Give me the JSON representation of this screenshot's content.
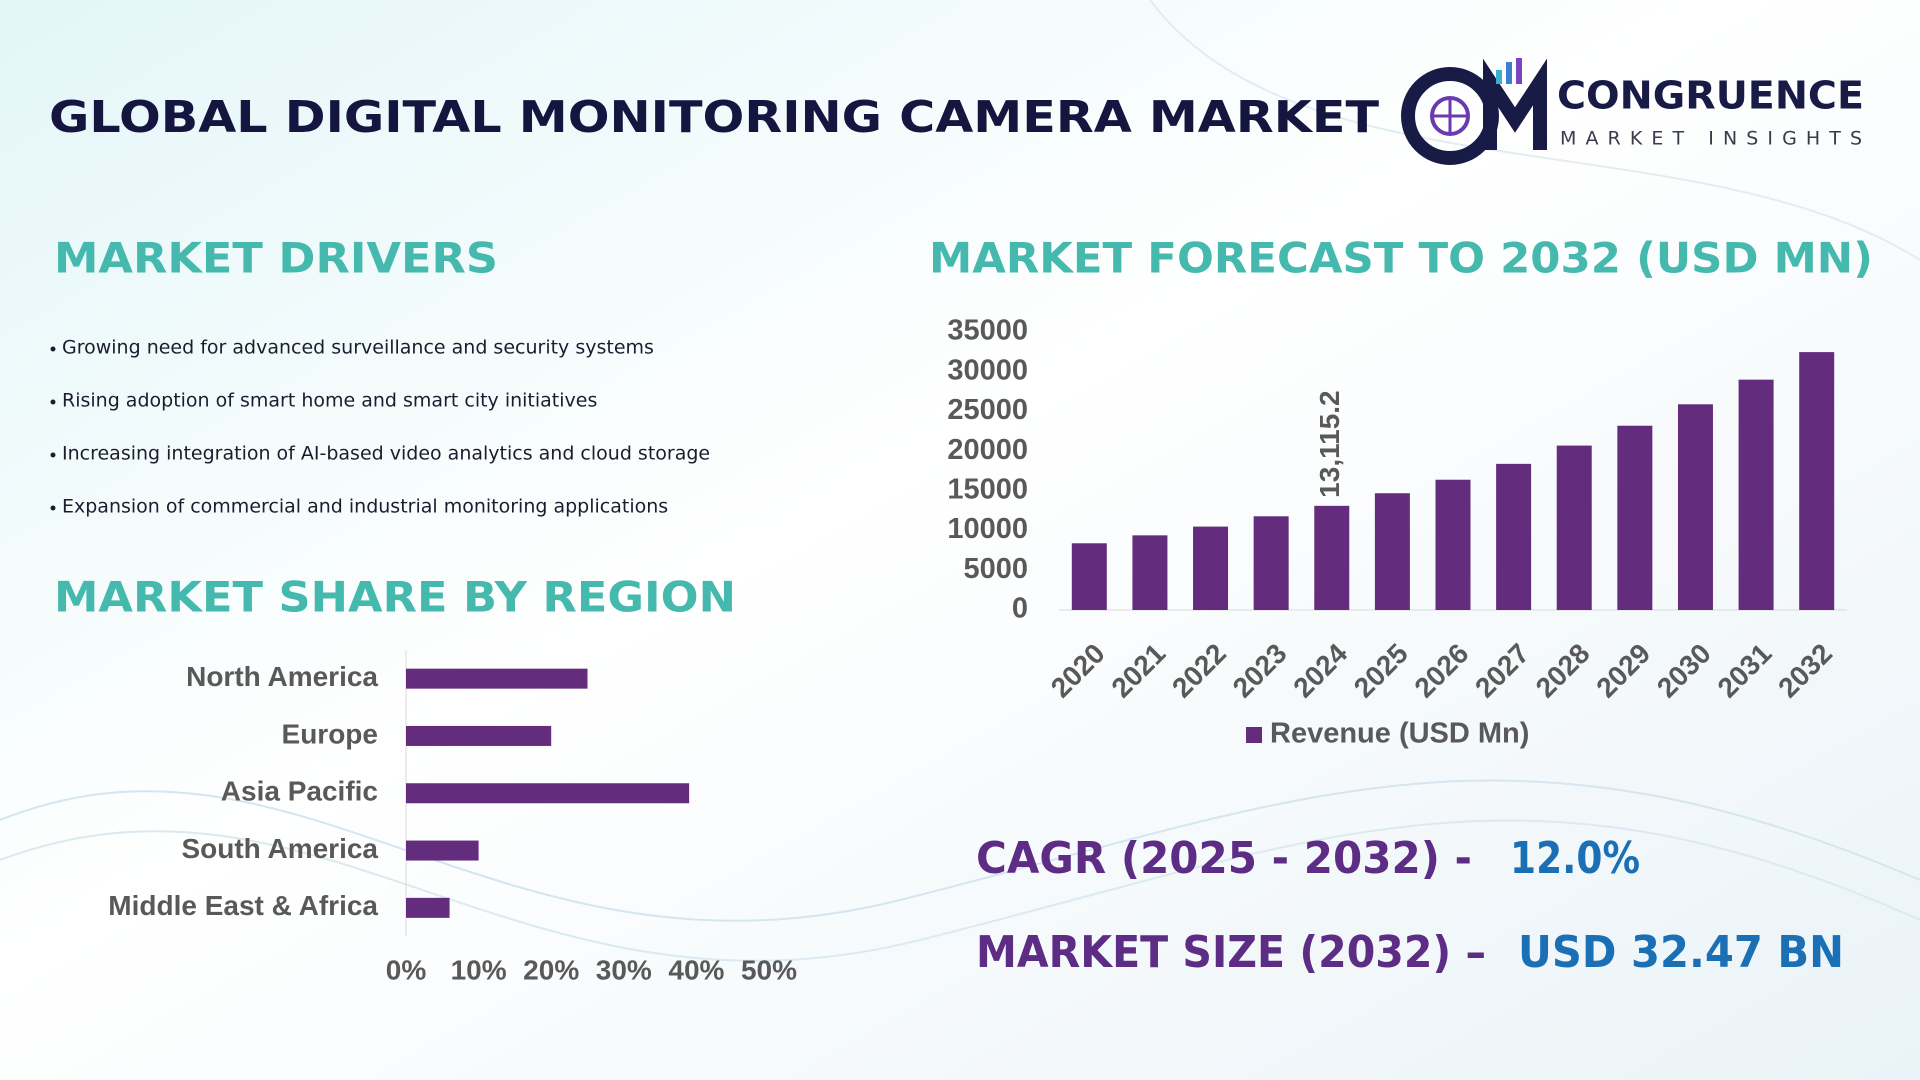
{
  "header": {
    "title": "GLOBAL DIGITAL MONITORING CAMERA MARKET",
    "logo_name": "CONGRUENCE",
    "logo_tagline": "MARKET INSIGHTS"
  },
  "drivers": {
    "heading": "MARKET DRIVERS",
    "items": [
      "Growing need for advanced surveillance and security systems",
      "Rising adoption of smart home and smart city initiatives",
      "Increasing integration of AI-based video analytics and cloud storage",
      "Expansion of commercial and industrial monitoring applications"
    ]
  },
  "region_heading": "MARKET SHARE BY REGION",
  "forecast_heading": "MARKET FORECAST TO 2032 (USD MN)",
  "summary": {
    "cagr_label": "CAGR (2025 - 2032) -",
    "cagr_value": "12.0%",
    "size_label": "MARKET SIZE (2032) –",
    "size_value": "USD 32.47 BN"
  },
  "chart_data": [
    {
      "type": "hbar",
      "categories": [
        "North America",
        "Europe",
        "Asia Pacific",
        "South America",
        "Middle East & Africa"
      ],
      "values": [
        25,
        20,
        39,
        10,
        6
      ],
      "color": "#642c7c",
      "xlim": [
        0,
        50
      ],
      "xticks": [
        {
          "value": 0,
          "label": "0%"
        },
        {
          "value": 10,
          "label": "10%"
        },
        {
          "value": 20,
          "label": "20%"
        },
        {
          "value": 30,
          "label": "30%"
        },
        {
          "value": 40,
          "label": "40%"
        },
        {
          "value": 50,
          "label": "50%"
        }
      ]
    },
    {
      "type": "bar",
      "categories": [
        "2020",
        "2021",
        "2022",
        "2023",
        "2024",
        "2025",
        "2026",
        "2027",
        "2028",
        "2029",
        "2030",
        "2031",
        "2032"
      ],
      "series": [
        {
          "name": "Revenue (USD Mn)",
          "color": "#642c7c",
          "values": [
            8400,
            9400,
            10500,
            11800,
            13115.2,
            14700,
            16400,
            18400,
            20700,
            23200,
            25900,
            29000,
            32470
          ],
          "value_labels": [
            null,
            null,
            null,
            null,
            "13,115.2",
            null,
            null,
            null,
            null,
            null,
            null,
            null,
            null
          ]
        }
      ],
      "ylim": [
        0,
        35000
      ],
      "yticks": [
        0,
        5000,
        10000,
        15000,
        20000,
        25000,
        30000,
        35000
      ],
      "legend": "bottom"
    }
  ]
}
